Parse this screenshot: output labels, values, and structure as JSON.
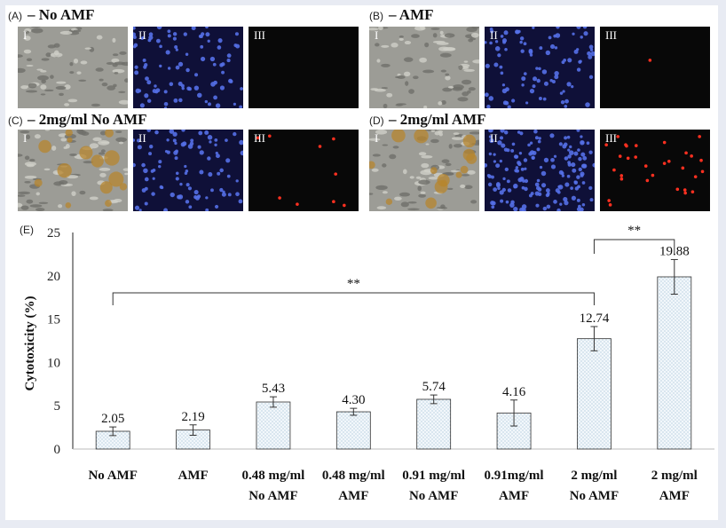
{
  "panels": [
    {
      "label": "(A)",
      "title": "– No AMF",
      "tiles": [
        {
          "numeral": "I",
          "kind": "bright"
        },
        {
          "numeral": "II",
          "kind": "blue"
        },
        {
          "numeral": "III",
          "kind": "red",
          "red_count": 0
        }
      ]
    },
    {
      "label": "(B)",
      "title": "– AMF",
      "tiles": [
        {
          "numeral": "I",
          "kind": "bright"
        },
        {
          "numeral": "II",
          "kind": "blue"
        },
        {
          "numeral": "III",
          "kind": "red",
          "red_count": 1
        }
      ]
    },
    {
      "label": "(C)",
      "title": "– 2mg/ml No AMF",
      "tiles": [
        {
          "numeral": "I",
          "kind": "bright-brown"
        },
        {
          "numeral": "II",
          "kind": "blue"
        },
        {
          "numeral": "III",
          "kind": "red",
          "red_count": 9
        }
      ]
    },
    {
      "label": "(D)",
      "title": "– 2mg/ml AMF",
      "tiles": [
        {
          "numeral": "I",
          "kind": "bright-brown"
        },
        {
          "numeral": "II",
          "kind": "blue-dense"
        },
        {
          "numeral": "III",
          "kind": "red",
          "red_count": 30
        }
      ]
    }
  ],
  "chart_label": "(E)",
  "chart_data": {
    "type": "bar",
    "ylabel": "Cytotoxicity (%)",
    "ylim": [
      0,
      25
    ],
    "yticks": [
      0,
      5,
      10,
      15,
      20,
      25
    ],
    "grid": false,
    "categories": [
      [
        "No AMF"
      ],
      [
        "AMF"
      ],
      [
        "0.48 mg/ml",
        "No AMF"
      ],
      [
        "0.48 mg/ml",
        "AMF"
      ],
      [
        "0.91 mg/ml",
        "No AMF"
      ],
      [
        "0.91mg/ml",
        "AMF"
      ],
      [
        "2 mg/ml",
        "No AMF"
      ],
      [
        "2 mg/ml",
        "AMF"
      ]
    ],
    "values": [
      2.05,
      2.19,
      5.43,
      4.3,
      5.74,
      4.16,
      12.74,
      19.88
    ],
    "value_labels": [
      "2.05",
      "2.19",
      "5.43",
      "4.30",
      "5.74",
      "4.16",
      "12.74",
      "19.88"
    ],
    "errors": [
      0.5,
      0.6,
      0.6,
      0.4,
      0.5,
      1.5,
      1.4,
      2.0
    ],
    "significance": [
      {
        "from": 0,
        "to": 6,
        "label": "**"
      },
      {
        "from": 6,
        "to": 7,
        "label": "**"
      }
    ]
  }
}
